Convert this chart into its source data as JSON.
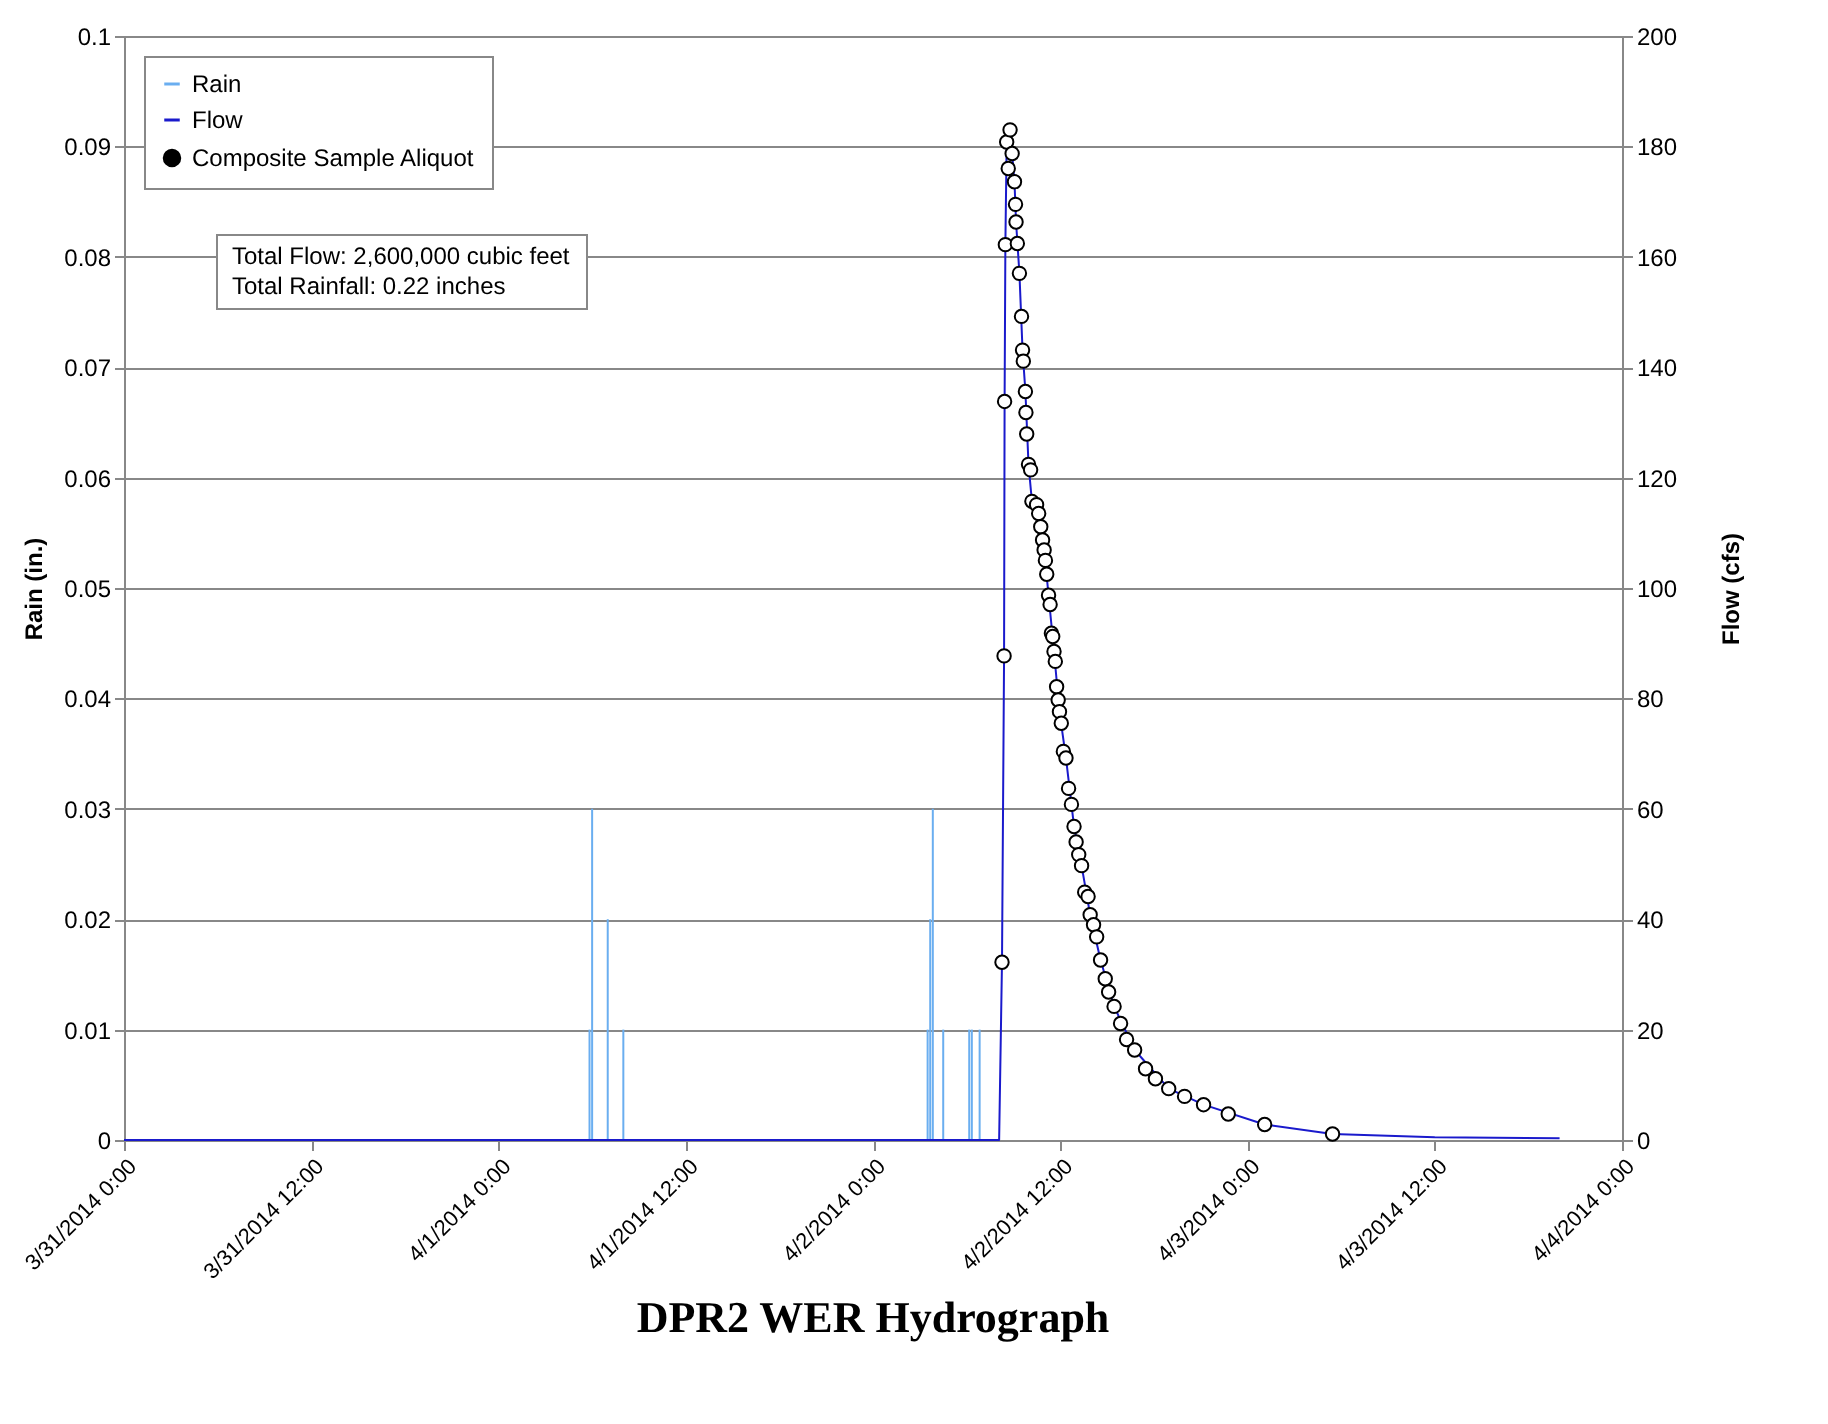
{
  "chart_data": {
    "type": "line",
    "title": "DPR2 WER Hydrograph",
    "ylabel": "Rain (in.)",
    "y2label": "Flow (cfs)",
    "annotations": [
      "Total Flow: 2,600,000 cubic feet",
      "Total Rainfall: 0.22 inches"
    ],
    "xlim": [
      "2014-03-31T00:00",
      "2014-04-04T00:00"
    ],
    "xticks": [
      {
        "value": "2014-03-31T00:00",
        "label": "3/31/2014 0:00"
      },
      {
        "value": "2014-03-31T12:00",
        "label": "3/31/2014 12:00"
      },
      {
        "value": "2014-04-01T00:00",
        "label": "4/1/2014 0:00"
      },
      {
        "value": "2014-04-01T12:00",
        "label": "4/1/2014 12:00"
      },
      {
        "value": "2014-04-02T00:00",
        "label": "4/2/2014 0:00"
      },
      {
        "value": "2014-04-02T12:00",
        "label": "4/2/2014 12:00"
      },
      {
        "value": "2014-04-03T00:00",
        "label": "4/3/2014 0:00"
      },
      {
        "value": "2014-04-03T12:00",
        "label": "4/3/2014 12:00"
      },
      {
        "value": "2014-04-04T00:00",
        "label": "4/4/2014 0:00"
      }
    ],
    "ylim": [
      0,
      0.1
    ],
    "yticks": [
      0,
      0.01,
      0.02,
      0.03,
      0.04,
      0.05,
      0.06,
      0.07,
      0.08,
      0.09,
      0.1
    ],
    "y2lim": [
      0,
      200
    ],
    "y2ticks": [
      0,
      20,
      40,
      60,
      80,
      100,
      120,
      140,
      160,
      180,
      200
    ],
    "grid": "y",
    "legend": "top left",
    "series": [
      {
        "name": "Rain",
        "type": "bar",
        "color": "#6aaef0",
        "x": [
          "2014-04-01T05:50",
          "2014-04-01T06:00",
          "2014-04-01T07:00",
          "2014-04-01T08:00",
          "2014-04-02T03:30",
          "2014-04-02T03:40",
          "2014-04-02T03:50",
          "2014-04-02T04:30",
          "2014-04-02T06:10",
          "2014-04-02T06:20",
          "2014-04-02T06:50"
        ],
        "values": [
          0.01,
          0.03,
          0.02,
          0.01,
          0.01,
          0.02,
          0.03,
          0.01,
          0.01,
          0.01,
          0.01
        ]
      },
      {
        "name": "Flow",
        "axis": "y2",
        "color": "#1a1acc",
        "x": [
          "2014-03-31T00:00",
          "2014-04-02T08:05",
          "2014-04-02T08:16",
          "2014-04-02T08:24",
          "2014-04-02T08:26",
          "2014-04-02T08:29",
          "2014-04-02T08:34",
          "2014-04-02T08:47",
          "2014-04-02T08:55",
          "2014-04-02T09:04",
          "2014-04-02T09:10",
          "2014-04-02T09:23",
          "2014-04-02T09:35",
          "2014-04-02T09:46",
          "2014-04-02T09:58",
          "2014-04-02T10:11",
          "2014-04-02T10:37",
          "2014-04-02T10:58",
          "2014-04-02T11:15",
          "2014-04-02T11:36",
          "2014-04-02T11:57",
          "2014-04-02T12:22",
          "2014-04-02T12:53",
          "2014-04-02T13:22",
          "2014-04-02T13:55",
          "2014-04-02T14:35",
          "2014-04-02T15:27",
          "2014-04-02T16:46",
          "2014-04-02T18:57",
          "2014-04-02T21:11",
          "2014-04-03T01:06",
          "2014-04-03T05:27",
          "2014-04-03T12:00",
          "2014-04-03T20:00"
        ],
        "values": [
          0,
          0,
          32.2,
          87.7,
          133.8,
          162.2,
          180.8,
          183.0,
          178.7,
          173.6,
          166.3,
          157.0,
          143.1,
          135.6,
          122.4,
          115.7,
          113.5,
          106.9,
          98.7,
          88.5,
          77.6,
          69.2,
          56.8,
          49.7,
          40.8,
          32.6,
          24.2,
          16.3,
          9.3,
          6.4,
          2.8,
          1.1,
          0.5,
          0.3
        ]
      },
      {
        "name": "Composite Sample Aliquot",
        "type": "scatter",
        "axis": "y2",
        "color": "#000000",
        "marker": "circle",
        "x": [
          "2014-04-02T08:16",
          "2014-04-02T08:24",
          "2014-04-02T08:26",
          "2014-04-02T08:29",
          "2014-04-02T08:34",
          "2014-04-02T08:40",
          "2014-04-02T08:47",
          "2014-04-02T08:55",
          "2014-04-02T09:04",
          "2014-04-02T09:08",
          "2014-04-02T09:10",
          "2014-04-02T09:15",
          "2014-04-02T09:23",
          "2014-04-02T09:31",
          "2014-04-02T09:35",
          "2014-04-02T09:38",
          "2014-04-02T09:46",
          "2014-04-02T09:48",
          "2014-04-02T09:51",
          "2014-04-02T09:58",
          "2014-04-02T10:06",
          "2014-04-02T10:11",
          "2014-04-02T10:29",
          "2014-04-02T10:37",
          "2014-04-02T10:45",
          "2014-04-02T10:52",
          "2014-04-02T10:58",
          "2014-04-02T11:03",
          "2014-04-02T11:08",
          "2014-04-02T11:15",
          "2014-04-02T11:21",
          "2014-04-02T11:26",
          "2014-04-02T11:31",
          "2014-04-02T11:36",
          "2014-04-02T11:41",
          "2014-04-02T11:46",
          "2014-04-02T11:52",
          "2014-04-02T11:57",
          "2014-04-02T12:04",
          "2014-04-02T12:12",
          "2014-04-02T12:22",
          "2014-04-02T12:32",
          "2014-04-02T12:43",
          "2014-04-02T12:53",
          "2014-04-02T13:01",
          "2014-04-02T13:11",
          "2014-04-02T13:22",
          "2014-04-02T13:34",
          "2014-04-02T13:47",
          "2014-04-02T13:55",
          "2014-04-02T14:08",
          "2014-04-02T14:20",
          "2014-04-02T14:35",
          "2014-04-02T14:53",
          "2014-04-02T15:06",
          "2014-04-02T15:27",
          "2014-04-02T15:52",
          "2014-04-02T16:15",
          "2014-04-02T16:46",
          "2014-04-02T17:28",
          "2014-04-02T18:06",
          "2014-04-02T18:57",
          "2014-04-02T19:58",
          "2014-04-02T21:11",
          "2014-04-02T22:46",
          "2014-04-03T01:06",
          "2014-04-03T05:27"
        ],
        "values": [
          32.2,
          87.7,
          133.8,
          162.2,
          180.8,
          176.0,
          183.0,
          178.7,
          173.6,
          169.5,
          166.3,
          162.4,
          157.0,
          149.2,
          143.1,
          141.1,
          135.6,
          131.8,
          127.9,
          122.4,
          121.4,
          115.7,
          115.1,
          113.5,
          111.1,
          108.7,
          106.9,
          105.0,
          102.5,
          98.7,
          97.0,
          91.8,
          91.2,
          88.5,
          86.7,
          82.1,
          79.7,
          77.6,
          75.5,
          70.4,
          69.2,
          63.7,
          60.8,
          56.8,
          54.0,
          51.7,
          49.7,
          44.9,
          44.1,
          40.8,
          39.0,
          36.8,
          32.6,
          29.2,
          26.8,
          24.2,
          21.1,
          18.2,
          16.3,
          12.9,
          11.1,
          9.3,
          7.9,
          6.4,
          4.7,
          2.8,
          1.1
        ]
      }
    ]
  }
}
